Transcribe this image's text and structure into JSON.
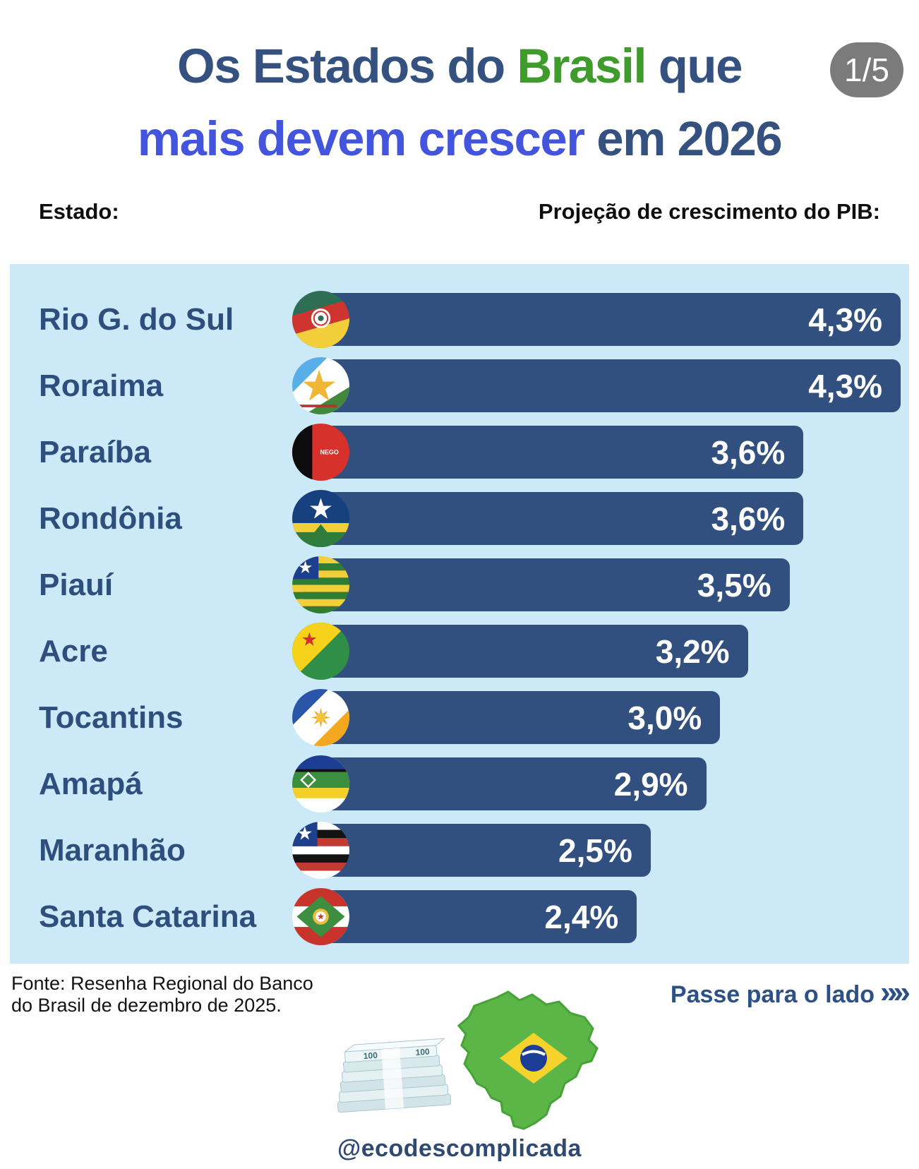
{
  "page": {
    "badge": "1/5",
    "title": {
      "part1": "Os Estados do ",
      "part2": "Brasil",
      "part3": " que",
      "part4": "mais devem crescer",
      "part5": " em 2026"
    },
    "columns": {
      "left": "Estado:",
      "right": "Projeção de crescimento do PIB:"
    },
    "footer": {
      "source_line1": "Fonte: Resenha Regional do Banco",
      "source_line2": "do Brasil de dezembro de 2025.",
      "cta": "Passe para o lado",
      "cta_arrow": "»",
      "bill_text": "100",
      "handle": "@ecodescomplicada"
    },
    "colors": {
      "panel_bg": "#cbe9f6",
      "bar": "#31507f",
      "title_navy": "#34517f",
      "title_green": "#3f9b2c",
      "title_blue": "#4355dc",
      "badge_bg": "#7b7b7b",
      "value_text": "#ffffff",
      "state_label": "#2e4f7e",
      "cta_text": "#2d5187"
    }
  },
  "chart_data": {
    "type": "bar",
    "orientation": "horizontal",
    "title": "Os Estados do Brasil que mais devem crescer em 2026",
    "category_axis_label": "Estado:",
    "value_axis_label": "Projeção de crescimento do PIB:",
    "categories": [
      "Rio G. do Sul",
      "Roraima",
      "Paraíba",
      "Rondônia",
      "Piauí",
      "Acre",
      "Tocantins",
      "Amapá",
      "Maranhão",
      "Santa Catarina"
    ],
    "values": [
      4.3,
      4.3,
      3.6,
      3.6,
      3.5,
      3.2,
      3.0,
      2.9,
      2.5,
      2.4
    ],
    "value_labels": [
      "4,3%",
      "4,3%",
      "3,6%",
      "3,6%",
      "3,5%",
      "3,2%",
      "3,0%",
      "2,9%",
      "2,5%",
      "2,4%"
    ],
    "xlim": [
      0,
      4.32
    ],
    "grid": false,
    "legend": false,
    "bar_color": "#31507f",
    "flag_keys": [
      "rio-grande-do-sul",
      "roraima",
      "paraiba",
      "rondonia",
      "piaui",
      "acre",
      "tocantins",
      "amapa",
      "maranhao",
      "santa-catarina"
    ],
    "paraiba_flag_text": "NEGO"
  }
}
